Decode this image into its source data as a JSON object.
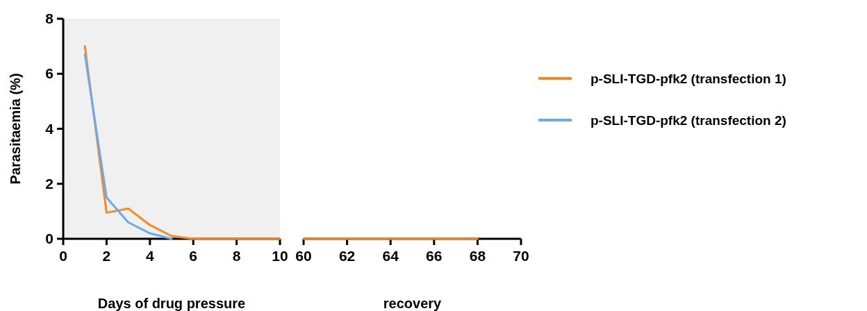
{
  "chart_data": [
    {
      "type": "line",
      "ylabel": "Parasitaemia (%)",
      "x": [
        1,
        2,
        3,
        4,
        5,
        6,
        7,
        8,
        9,
        10
      ],
      "series": [
        {
          "name": "p-SLI-TGD-pfk2 (transfection 1)",
          "color": "#f58a1f",
          "values": [
            7.0,
            0.95,
            1.1,
            0.5,
            0.1,
            0,
            0,
            0,
            0,
            0
          ]
        },
        {
          "name": "p-SLI-TGD-pfk2 (transfection 2)",
          "color": "#6aaaf0",
          "values": [
            6.7,
            1.5,
            0.6,
            0.2,
            0,
            null,
            null,
            null,
            null,
            null
          ]
        }
      ],
      "xlim": [
        0,
        10
      ],
      "xticks": [
        0,
        2,
        4,
        6,
        8,
        10
      ],
      "ylim": [
        0,
        8
      ],
      "yticks": [
        0,
        2,
        4,
        6,
        8
      ],
      "bands": [
        {
          "axis": "x",
          "from": 0,
          "to": 10,
          "color": "#f0f0f0"
        }
      ],
      "xlabel": "Days of drug pressure",
      "grid": false,
      "legend": "right",
      "marker": "none",
      "line_style": "solid"
    },
    {
      "type": "line",
      "x": [
        60,
        61,
        62,
        63,
        64,
        65,
        66,
        67,
        68
      ],
      "series": [
        {
          "color": "#f58a1f",
          "values": [
            0,
            0,
            0,
            0,
            0,
            0,
            0,
            0,
            0
          ]
        }
      ],
      "xlim": [
        60,
        70
      ],
      "xticks": [
        60,
        62,
        64,
        66,
        68,
        70
      ],
      "ylim": [
        0,
        8
      ],
      "tick_labels": "x",
      "xlabel": "recovery",
      "grid": false,
      "marker": "none",
      "line_style": "solid"
    }
  ]
}
